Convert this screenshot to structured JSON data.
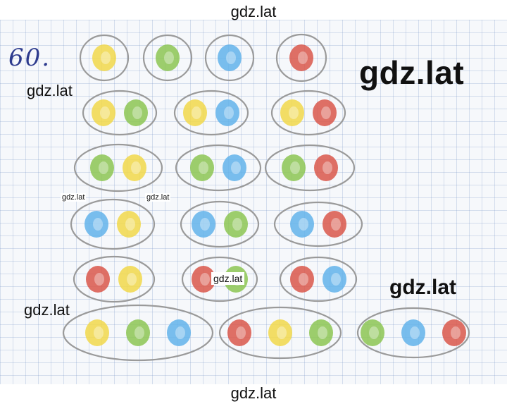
{
  "problem_number": "60.",
  "watermarks": {
    "top": "gdz.lat",
    "bottom": "gdz.lat",
    "mid_left": "gdz.lat",
    "lower_left": "gdz.lat",
    "big_right": "gdz.lat",
    "big_right_lower": "gdz.lat",
    "tiny_1": "gdz.lat",
    "tiny_2": "gdz.lat",
    "center": "gdz.lat"
  },
  "colors": {
    "yellow": "#f1d84a",
    "green": "#8cc552",
    "blue": "#62b3ea",
    "red": "#d9574a",
    "outline": "#9a9a9a"
  },
  "rows": [
    [
      [
        "yellow"
      ],
      [
        "green"
      ],
      [
        "blue"
      ],
      [
        "red"
      ]
    ],
    [
      [
        "yellow",
        "green"
      ],
      [
        "yellow",
        "blue"
      ],
      [
        "yellow",
        "red"
      ]
    ],
    [
      [
        "green",
        "yellow"
      ],
      [
        "green",
        "blue"
      ],
      [
        "green",
        "red"
      ]
    ],
    [
      [
        "blue",
        "yellow"
      ],
      [
        "blue",
        "green"
      ],
      [
        "blue",
        "red"
      ]
    ],
    [
      [
        "red",
        "yellow"
      ],
      [
        "red",
        "green"
      ],
      [
        "red",
        "blue"
      ]
    ],
    [
      [
        "yellow",
        "green",
        "blue"
      ],
      [
        "red",
        "yellow",
        "green"
      ],
      [
        "green",
        "blue",
        "red"
      ]
    ]
  ]
}
